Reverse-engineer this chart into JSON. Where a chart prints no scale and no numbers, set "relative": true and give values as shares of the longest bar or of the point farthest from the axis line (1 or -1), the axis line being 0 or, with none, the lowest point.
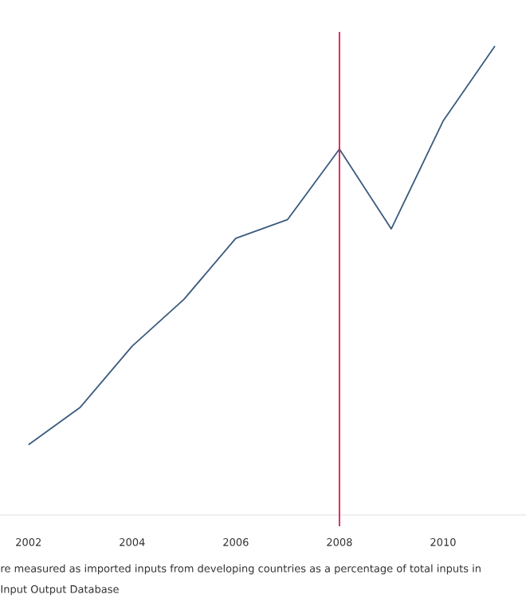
{
  "chart_data": {
    "type": "line",
    "relative": true,
    "x": [
      2002,
      2003,
      2004,
      2005,
      2006,
      2007,
      2008,
      2009,
      2010,
      2011
    ],
    "series": [
      {
        "color": "#3b5b7e",
        "values": [
          0.15,
          0.23,
          0.36,
          0.46,
          0.59,
          0.63,
          0.78,
          0.61,
          0.84,
          1
        ]
      }
    ],
    "xlim": [
      2001.45,
      2011.6
    ],
    "xticks": [
      2002,
      2004,
      2006,
      2008,
      2010
    ],
    "ref_lines": [
      {
        "axis": "x",
        "value": 2008,
        "color": "#d81b4f"
      }
    ],
    "annotations": [
      "re measured as imported inputs from developing countries as a percentage of total inputs in",
      "Input Output Database"
    ]
  }
}
